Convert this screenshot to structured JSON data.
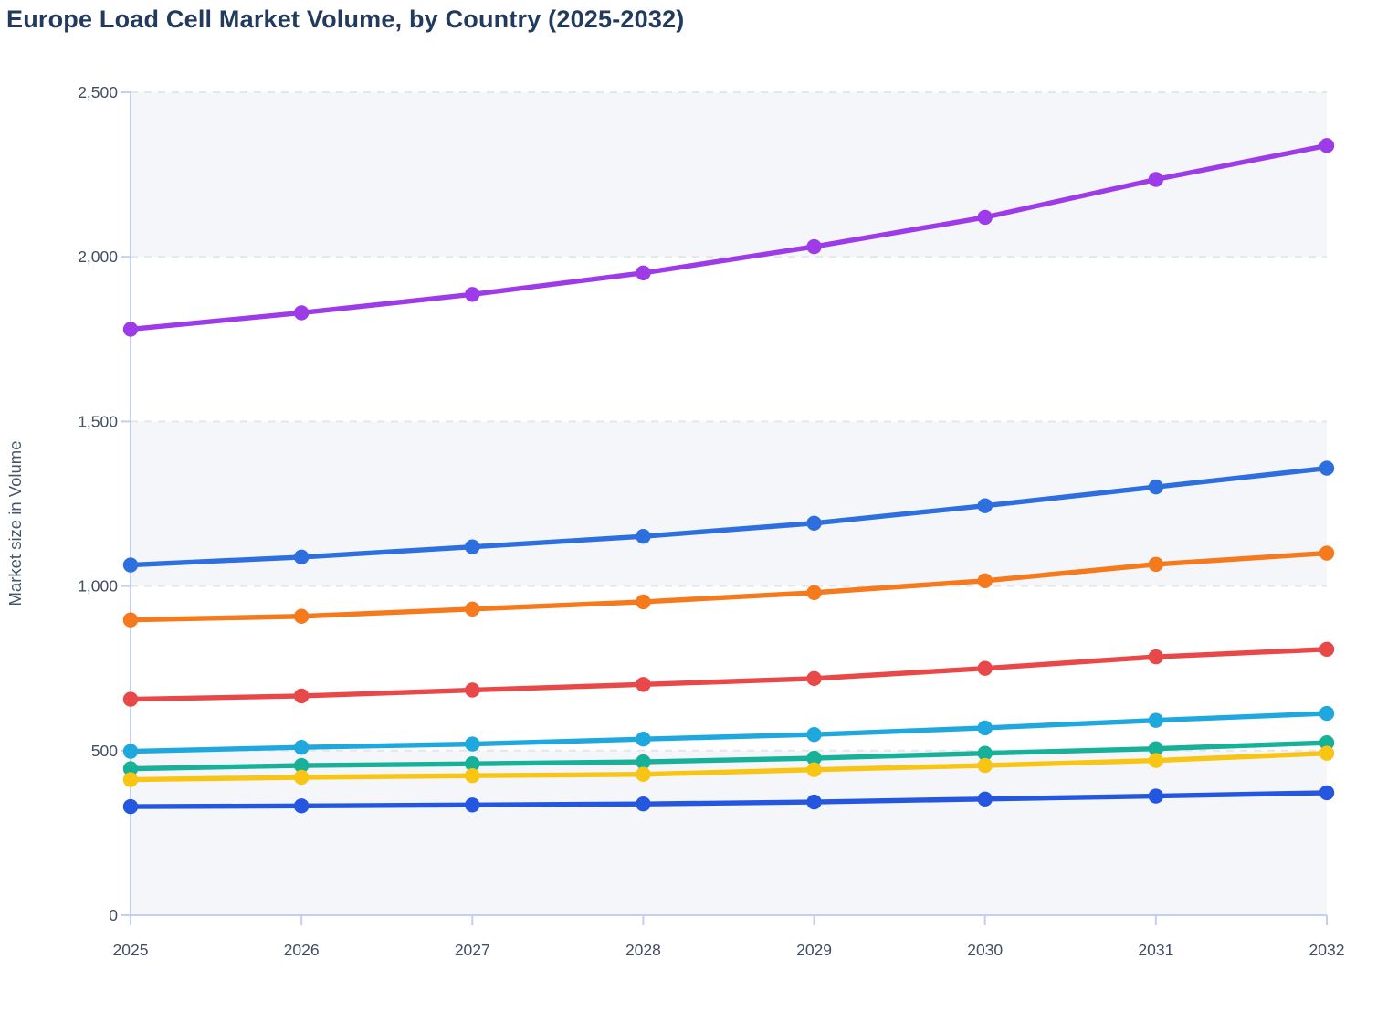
{
  "title": "Europe Load Cell Market Volume, by Country (2025-2032)",
  "chart_data": {
    "type": "line",
    "title": "Europe Load Cell Market Volume, by Country (2025-2032)",
    "xlabel": "",
    "ylabel": "Market size in Volume",
    "x_categories": [
      "2025",
      "2026",
      "2027",
      "2028",
      "2029",
      "2030",
      "2031",
      "2032"
    ],
    "ylim": [
      0,
      2500
    ],
    "y_ticks": [
      0,
      500,
      1000,
      1500,
      2000,
      2500
    ],
    "y_tick_labels": [
      "0",
      "500",
      "1,000",
      "1,500",
      "2,000",
      "2,500"
    ],
    "grid": "horizontal-dashed",
    "legend_position": "none",
    "band_fill_intervals": [
      [
        0,
        500
      ],
      [
        1000,
        1500
      ],
      [
        2000,
        2500
      ]
    ],
    "series": [
      {
        "name": "purple",
        "color": "#9d3be8",
        "values": [
          1780,
          1830,
          1886,
          1951,
          2031,
          2120,
          2235,
          2338
        ]
      },
      {
        "name": "blue",
        "color": "#2e6fe0",
        "values": [
          1064,
          1088,
          1119,
          1151,
          1191,
          1244,
          1301,
          1358
        ]
      },
      {
        "name": "orange",
        "color": "#f5791d",
        "values": [
          897,
          908,
          930,
          952,
          980,
          1016,
          1066,
          1100
        ]
      },
      {
        "name": "red",
        "color": "#e84848",
        "values": [
          656,
          666,
          684,
          701,
          719,
          750,
          785,
          808
        ]
      },
      {
        "name": "cyan",
        "color": "#1fa8dd",
        "values": [
          498,
          510,
          520,
          535,
          549,
          569,
          592,
          613
        ]
      },
      {
        "name": "teal",
        "color": "#16b198",
        "values": [
          445,
          455,
          460,
          466,
          477,
          492,
          506,
          524
        ]
      },
      {
        "name": "yellow",
        "color": "#f9c513",
        "values": [
          412,
          419,
          424,
          428,
          442,
          455,
          470,
          492
        ]
      },
      {
        "name": "navy",
        "color": "#2456e0",
        "values": [
          330,
          332,
          335,
          338,
          344,
          353,
          362,
          372
        ]
      }
    ]
  },
  "colors": {
    "title": "#223a5e",
    "axis_title": "#475569",
    "tick_label": "#414d63",
    "axis_line": "#c4cdf2",
    "gridline": "#e4e6ea",
    "band_fill": "#f4f6f9",
    "background": "#ffffff"
  }
}
